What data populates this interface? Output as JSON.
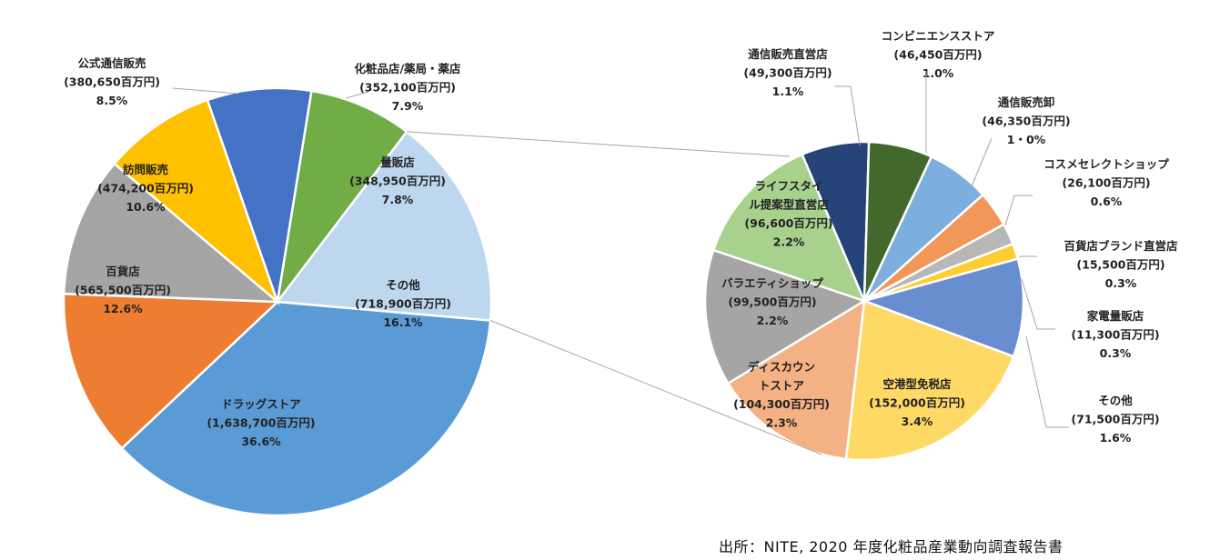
{
  "chart_data": [
    {
      "type": "pie",
      "unit": "百万円",
      "slices": [
        {
          "name": "ドラッグストア",
          "value": 1638700,
          "amount": "(1,638,700百万円)",
          "pct": "36.6%",
          "color": "#5b9bd5"
        },
        {
          "name": "百貨店",
          "value": 565500,
          "amount": "(565,500百万円)",
          "pct": "12.6%",
          "color": "#ed7d31"
        },
        {
          "name": "訪問販売",
          "value": 474200,
          "amount": "(474,200百万円)",
          "pct": "10.6%",
          "color": "#a5a5a5"
        },
        {
          "name": "公式通信販売",
          "value": 380650,
          "amount": "(380,650百万円)",
          "pct": "8.5%",
          "color": "#ffc000"
        },
        {
          "name": "化粧品店/薬局・薬店",
          "value": 352100,
          "amount": "(352,100百万円)",
          "pct": "7.9%",
          "color": "#4472c4"
        },
        {
          "name": "量販店",
          "value": 348950,
          "amount": "(348,950百万円)",
          "pct": "7.8%",
          "color": "#70ad47"
        },
        {
          "name": "その他",
          "value": 718900,
          "amount": "(718,900百万円)",
          "pct": "16.1%",
          "color": "#bdd7ee"
        }
      ]
    },
    {
      "type": "pie",
      "unit": "百万円",
      "slices": [
        {
          "name": "通信販売直営店",
          "value": 49300,
          "amount": "(49,300百万円)",
          "pct": "1.1%",
          "color": "#264478"
        },
        {
          "name": "コンビニエンスストア",
          "value": 46450,
          "amount": "(46,450百万円)",
          "pct": "1.0%",
          "color": "#43682b"
        },
        {
          "name": "通信販売卸",
          "value": 46350,
          "amount": "(46,350百万円)",
          "pct": "1・0%",
          "color": "#7cafdd"
        },
        {
          "name": "コスメセレクトショップ",
          "value": 26100,
          "amount": "(26,100百万円)",
          "pct": "0.6%",
          "color": "#f1975a"
        },
        {
          "name": "百貨店ブランド直営店",
          "value": 15500,
          "amount": "(15,500百万円)",
          "pct": "0.3%",
          "color": "#b7b7b7"
        },
        {
          "name": "家電量販店",
          "value": 11300,
          "amount": "(11,300百万円)",
          "pct": "0.3%",
          "color": "#ffcd33"
        },
        {
          "name": "その他",
          "value": 71500,
          "amount": "(71,500百万円)",
          "pct": "1.6%",
          "color": "#698ed0"
        },
        {
          "name": "空港型免税店",
          "value": 152000,
          "amount": "(152,000百万円)",
          "pct": "3.4%",
          "color": "#ffd966"
        },
        {
          "name": "ディスカウントストア",
          "value": 104300,
          "amount": "(104,300百万円)",
          "pct": "2.3%",
          "color": "#f4b183"
        },
        {
          "name": "バラエティショップ",
          "value": 99500,
          "amount": "(99,500百万円)",
          "pct": "2.2%",
          "color": "#a5a5a5"
        },
        {
          "name": "ライフスタイル提案型直営店",
          "value": 96600,
          "amount": "(96,600百万円)",
          "pct": "2.2%",
          "color": "#a9d18e"
        }
      ]
    }
  ],
  "source": "出所：NITE, 2020 年度化粧品産業動向調査報告書"
}
